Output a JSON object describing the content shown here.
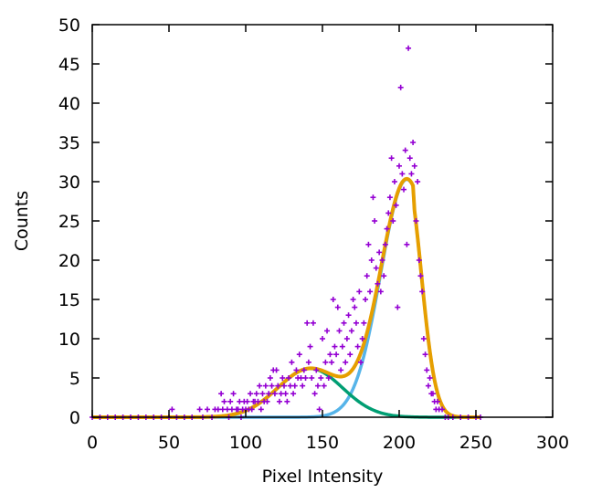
{
  "chart_data": {
    "type": "scatter",
    "xlabel": "Pixel Intensity",
    "ylabel": "Counts",
    "xlim": [
      0,
      300
    ],
    "ylim": [
      0,
      50
    ],
    "xticks": [
      "0",
      "50",
      "100",
      "150",
      "200",
      "250",
      "300"
    ],
    "yticks": [
      "0",
      "5",
      "10",
      "15",
      "20",
      "25",
      "30",
      "35",
      "40",
      "45",
      "50"
    ],
    "grid": false,
    "legend": "none",
    "series": [
      {
        "kind": "points",
        "marker": "plus",
        "color": "#9400d3",
        "points": [
          [
            0,
            0
          ],
          [
            5,
            0
          ],
          [
            10,
            0
          ],
          [
            15,
            0
          ],
          [
            20,
            0
          ],
          [
            25,
            0
          ],
          [
            30,
            0
          ],
          [
            35,
            0
          ],
          [
            40,
            0
          ],
          [
            45,
            0
          ],
          [
            50,
            0
          ],
          [
            52,
            1
          ],
          [
            55,
            0
          ],
          [
            60,
            0
          ],
          [
            65,
            0
          ],
          [
            70,
            1
          ],
          [
            72,
            0
          ],
          [
            75,
            1
          ],
          [
            78,
            0
          ],
          [
            80,
            1
          ],
          [
            82,
            1
          ],
          [
            84,
            3
          ],
          [
            85,
            1
          ],
          [
            86,
            2
          ],
          [
            88,
            1
          ],
          [
            89,
            0
          ],
          [
            90,
            2
          ],
          [
            91,
            1
          ],
          [
            92,
            3
          ],
          [
            94,
            1
          ],
          [
            95,
            1
          ],
          [
            96,
            2
          ],
          [
            97,
            0
          ],
          [
            98,
            1
          ],
          [
            99,
            2
          ],
          [
            100,
            1
          ],
          [
            101,
            2
          ],
          [
            102,
            1
          ],
          [
            103,
            3
          ],
          [
            104,
            1
          ],
          [
            105,
            2
          ],
          [
            106,
            2
          ],
          [
            107,
            3
          ],
          [
            108,
            2
          ],
          [
            109,
            4
          ],
          [
            110,
            1
          ],
          [
            111,
            3
          ],
          [
            112,
            2
          ],
          [
            113,
            4
          ],
          [
            114,
            2
          ],
          [
            115,
            3
          ],
          [
            116,
            5
          ],
          [
            117,
            4
          ],
          [
            118,
            6
          ],
          [
            119,
            3
          ],
          [
            120,
            6
          ],
          [
            121,
            4
          ],
          [
            122,
            2
          ],
          [
            123,
            3
          ],
          [
            124,
            5
          ],
          [
            125,
            4
          ],
          [
            126,
            3
          ],
          [
            127,
            2
          ],
          [
            128,
            5
          ],
          [
            129,
            4
          ],
          [
            130,
            7
          ],
          [
            131,
            3
          ],
          [
            132,
            4
          ],
          [
            133,
            6
          ],
          [
            134,
            5
          ],
          [
            135,
            8
          ],
          [
            136,
            5
          ],
          [
            137,
            4
          ],
          [
            138,
            6
          ],
          [
            139,
            5
          ],
          [
            140,
            12
          ],
          [
            141,
            7
          ],
          [
            142,
            9
          ],
          [
            143,
            5
          ],
          [
            144,
            12
          ],
          [
            145,
            3
          ],
          [
            146,
            6
          ],
          [
            147,
            4
          ],
          [
            148,
            1
          ],
          [
            149,
            5
          ],
          [
            150,
            10
          ],
          [
            151,
            4
          ],
          [
            152,
            7
          ],
          [
            153,
            11
          ],
          [
            154,
            5
          ],
          [
            155,
            8
          ],
          [
            156,
            7
          ],
          [
            157,
            15
          ],
          [
            158,
            9
          ],
          [
            159,
            8
          ],
          [
            160,
            14
          ],
          [
            161,
            11
          ],
          [
            162,
            6
          ],
          [
            163,
            9
          ],
          [
            164,
            12
          ],
          [
            165,
            7
          ],
          [
            166,
            10
          ],
          [
            167,
            13
          ],
          [
            168,
            8
          ],
          [
            169,
            11
          ],
          [
            170,
            15
          ],
          [
            171,
            14
          ],
          [
            172,
            12
          ],
          [
            173,
            9
          ],
          [
            174,
            16
          ],
          [
            175,
            7
          ],
          [
            176,
            10
          ],
          [
            177,
            12
          ],
          [
            178,
            15
          ],
          [
            179,
            18
          ],
          [
            180,
            22
          ],
          [
            181,
            16
          ],
          [
            182,
            20
          ],
          [
            183,
            28
          ],
          [
            184,
            25
          ],
          [
            185,
            19
          ],
          [
            186,
            17
          ],
          [
            187,
            21
          ],
          [
            188,
            16
          ],
          [
            189,
            20
          ],
          [
            190,
            18
          ],
          [
            191,
            22
          ],
          [
            192,
            24
          ],
          [
            193,
            26
          ],
          [
            194,
            28
          ],
          [
            195,
            33
          ],
          [
            196,
            25
          ],
          [
            197,
            30
          ],
          [
            198,
            27
          ],
          [
            199,
            14
          ],
          [
            200,
            32
          ],
          [
            201,
            42
          ],
          [
            202,
            31
          ],
          [
            203,
            29
          ],
          [
            204,
            34
          ],
          [
            205,
            22
          ],
          [
            206,
            47
          ],
          [
            207,
            33
          ],
          [
            208,
            31
          ],
          [
            209,
            35
          ],
          [
            210,
            32
          ],
          [
            211,
            25
          ],
          [
            212,
            30
          ],
          [
            213,
            20
          ],
          [
            214,
            18
          ],
          [
            215,
            16
          ],
          [
            216,
            10
          ],
          [
            217,
            8
          ],
          [
            218,
            6
          ],
          [
            219,
            4
          ],
          [
            220,
            5
          ],
          [
            221,
            3
          ],
          [
            222,
            3
          ],
          [
            223,
            2
          ],
          [
            224,
            1
          ],
          [
            225,
            2
          ],
          [
            226,
            1
          ],
          [
            228,
            1
          ],
          [
            230,
            0
          ],
          [
            232,
            0
          ],
          [
            235,
            0
          ],
          [
            240,
            0
          ],
          [
            245,
            0
          ],
          [
            250,
            0
          ],
          [
            253,
            0
          ]
        ]
      },
      {
        "kind": "gaussian",
        "color": "#56b4e9",
        "amplitude": 30.3,
        "mean": 205,
        "sigma": 17,
        "cutoff": 209
      },
      {
        "kind": "gaussian",
        "color": "#009e73",
        "amplitude": 6.2,
        "mean": 142,
        "sigma": 21,
        "cutoff": 999
      },
      {
        "kind": "sum",
        "color": "#e69f00"
      }
    ]
  }
}
